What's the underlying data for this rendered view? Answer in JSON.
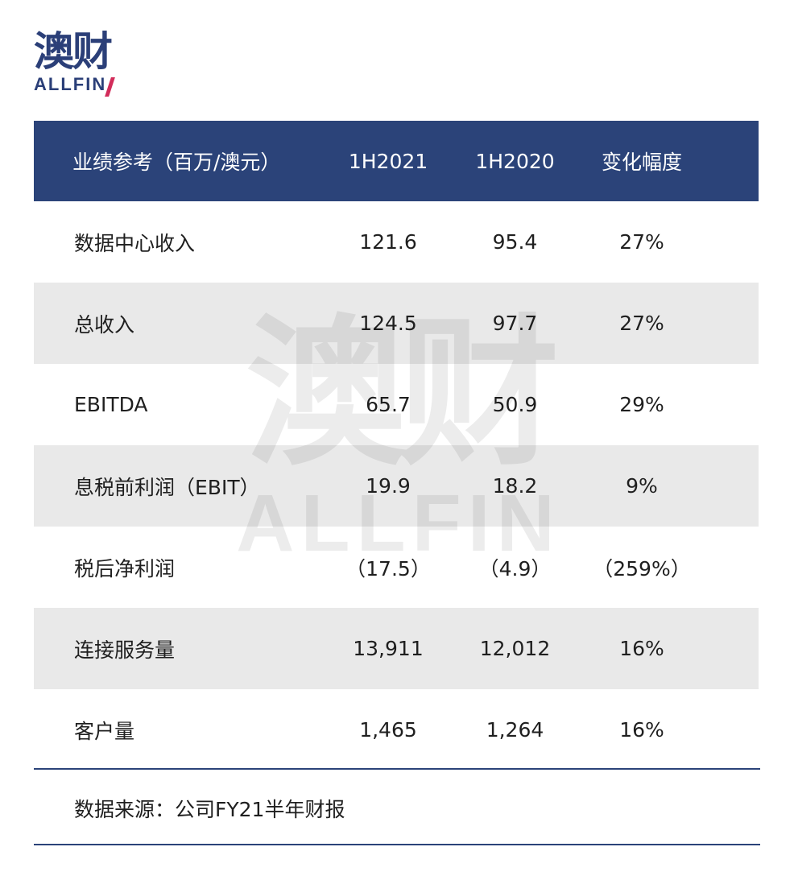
{
  "brand": {
    "logo_cn": "澳财",
    "logo_en": "ALLFIN",
    "accent_color": "#d22c5a",
    "primary_color": "#2b4379"
  },
  "table": {
    "headers": [
      "业绩参考（百万/澳元）",
      "1H2021",
      "1H2020",
      "变化幅度"
    ],
    "rows": [
      [
        "数据中心收入",
        "121.6",
        "95.4",
        "27%"
      ],
      [
        "总收入",
        "124.5",
        "97.7",
        "27%"
      ],
      [
        "EBITDA",
        "65.7",
        "50.9",
        "29%"
      ],
      [
        "息税前利润（EBIT）",
        "19.9",
        "18.2",
        "9%"
      ],
      [
        "税后净利润",
        "（17.5）",
        "（4.9）",
        "（259%）"
      ],
      [
        "连接服务量",
        "13,911",
        "12,012",
        "16%"
      ],
      [
        "客户量",
        "1,465",
        "1,264",
        "16%"
      ]
    ]
  },
  "footer": {
    "source": "数据来源：公司FY21半年财报"
  }
}
